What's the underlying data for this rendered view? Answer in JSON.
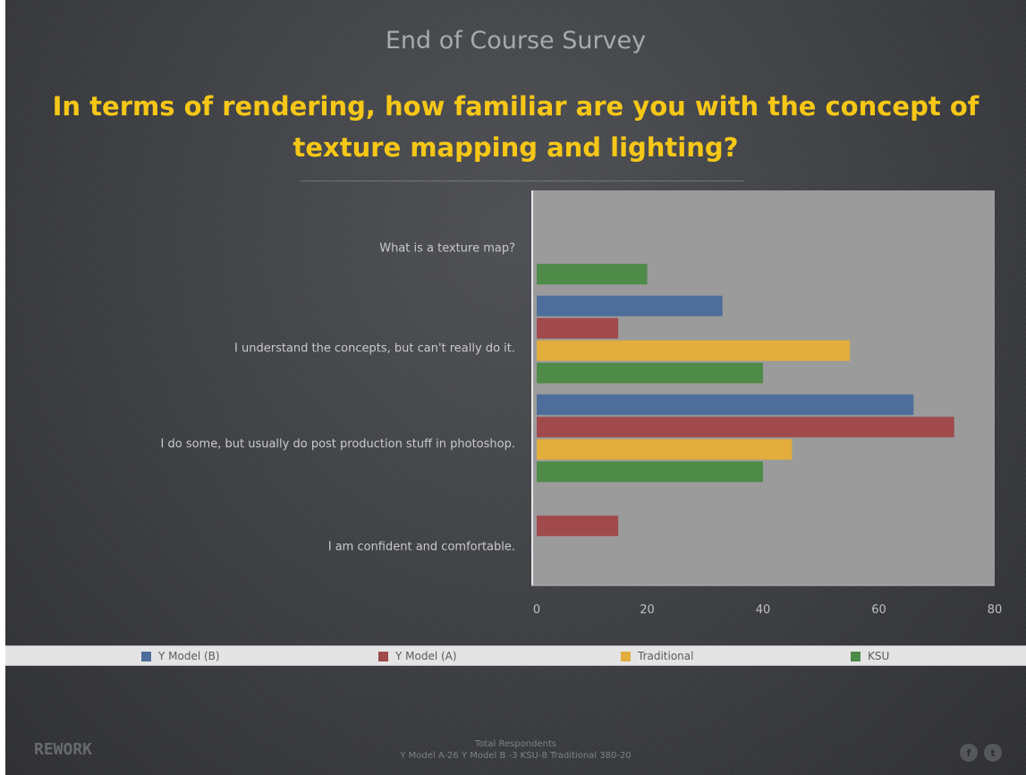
{
  "survey_title": "End of Course Survey",
  "question_line1": "In terms of rendering, how familiar are you with the concept of",
  "question_line2": "texture mapping and lighting?",
  "colors": {
    "Y Model (B)": "#4d6e9a",
    "Y Model (A)": "#a04a4c",
    "Traditional": "#e2ad3d",
    "KSU": "#4e8a48",
    "plot_bg": "#9b9b9b"
  },
  "chart_data": {
    "type": "bar",
    "orientation": "horizontal",
    "categories": [
      "What is a texture map?",
      "I understand the concepts, but can't really do it.",
      "I do some, but usually do post production stuff in photoshop.",
      "I am confident and comfortable."
    ],
    "series": [
      {
        "name": "Y Model (B)",
        "values": [
          0,
          33,
          66,
          0
        ]
      },
      {
        "name": "Y Model (A)",
        "values": [
          0,
          15,
          73,
          15
        ]
      },
      {
        "name": "Traditional",
        "values": [
          0,
          55,
          45,
          0
        ]
      },
      {
        "name": "KSU",
        "values": [
          20,
          40,
          40,
          0
        ]
      }
    ],
    "xlim": [
      0,
      80
    ],
    "xticks": [
      0,
      20,
      40,
      60,
      80
    ],
    "legend_position": "bottom"
  },
  "footer": {
    "brand": "REWORK",
    "respondents_title": "Total Respondents",
    "respondents_detail": "Y Model A-26  Y Model B -3 KSU-8 Traditional 380-20",
    "social": [
      "f",
      "t"
    ]
  }
}
